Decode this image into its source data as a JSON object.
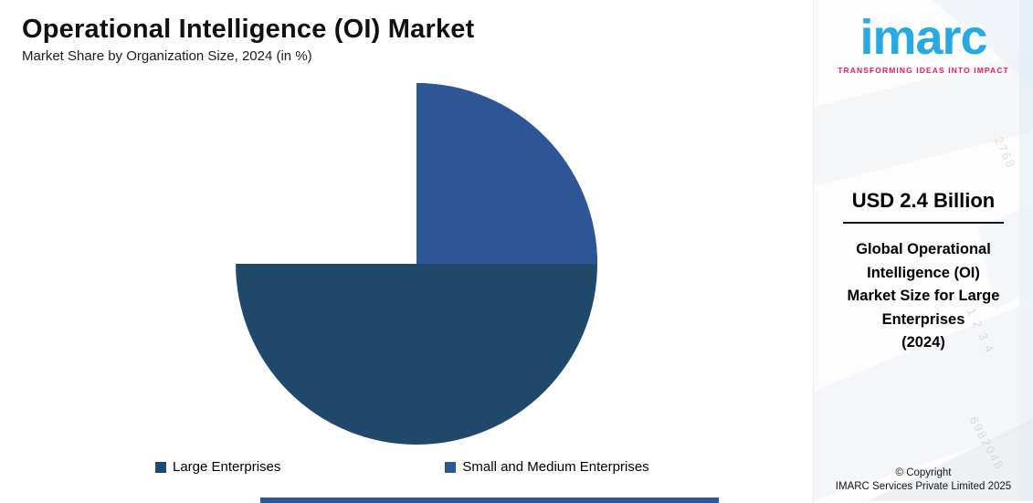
{
  "header": {
    "title": "Operational Intelligence (OI) Market",
    "subtitle": "Market Share by Organization Size, 2024 (in %)"
  },
  "chart_data": {
    "type": "pie",
    "title": "Operational Intelligence (OI) Market",
    "subtitle": "Market Share by Organization Size, 2024 (in %)",
    "categories": [
      "Large Enterprises",
      "Small and Medium Enterprises"
    ],
    "values": [
      75,
      25
    ],
    "units": "%",
    "colors": [
      "#20486A",
      "#2E5596"
    ],
    "start_angle_deg": -90,
    "direction": "clockwise",
    "legend_position": "bottom"
  },
  "legend": {
    "items": [
      {
        "label": "Large Enterprises",
        "color": "#20486A"
      },
      {
        "label": "Small and Medium Enterprises",
        "color": "#2E5596"
      }
    ]
  },
  "sidebar": {
    "logo_text": "imarc",
    "tagline": "TRANSFORMING IDEAS INTO IMPACT",
    "brand_color": "#29A9E1",
    "tagline_color": "#ED1A5E",
    "stat_value": "USD 2.4 Billion",
    "stat_label": "Global Operational\nIntelligence (OI)\nMarket Size for Large\nEnterprises\n(2024)",
    "copyright_line1": "© Copyright",
    "copyright_line2": "IMARC Services Private Limited 2025",
    "decor_numbers": [
      "6982048",
      "2768",
      "1 2 3 4"
    ]
  },
  "decor": {
    "footer_bar_color": "#2F5697"
  }
}
